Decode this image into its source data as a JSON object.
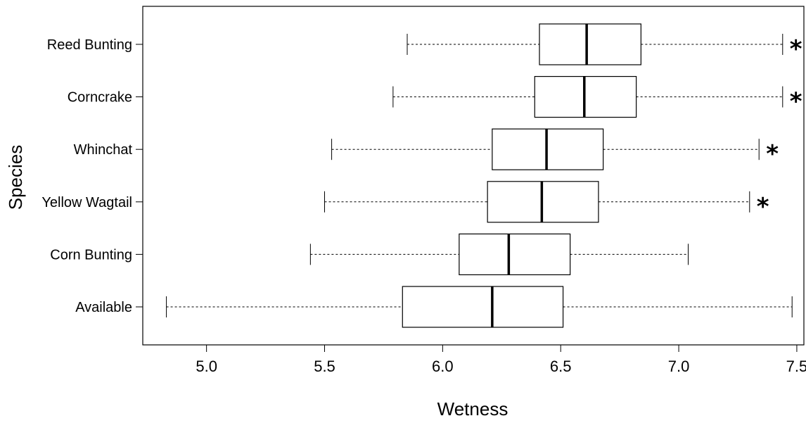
{
  "chart_data": {
    "type": "boxplot",
    "orientation": "horizontal",
    "xlabel": "Wetness",
    "ylabel": "Species",
    "xlim": [
      4.73,
      7.53
    ],
    "xticks": [
      "5.0",
      "5.5",
      "6.0",
      "6.5",
      "7.0",
      "7.5"
    ],
    "categories": [
      "Available",
      "Corn Bunting",
      "Yellow Wagtail",
      "Whinchat",
      "Corncrake",
      "Reed Bunting"
    ],
    "boxes": [
      {
        "name": "Available",
        "min": 4.83,
        "q1": 5.83,
        "median": 6.21,
        "q3": 6.51,
        "max": 7.48,
        "significant": false
      },
      {
        "name": "Corn Bunting",
        "min": 5.44,
        "q1": 6.07,
        "median": 6.28,
        "q3": 6.54,
        "max": 7.04,
        "significant": false
      },
      {
        "name": "Yellow Wagtail",
        "min": 5.5,
        "q1": 6.19,
        "median": 6.42,
        "q3": 6.66,
        "max": 7.3,
        "significant": true
      },
      {
        "name": "Whinchat",
        "min": 5.53,
        "q1": 6.21,
        "median": 6.44,
        "q3": 6.68,
        "max": 7.34,
        "significant": true
      },
      {
        "name": "Corncrake",
        "min": 5.79,
        "q1": 6.39,
        "median": 6.6,
        "q3": 6.82,
        "max": 7.44,
        "significant": true
      },
      {
        "name": "Reed Bunting",
        "min": 5.85,
        "q1": 6.41,
        "median": 6.61,
        "q3": 6.84,
        "max": 7.44,
        "significant": true
      }
    ],
    "significance_marker": "*",
    "grid": false
  }
}
